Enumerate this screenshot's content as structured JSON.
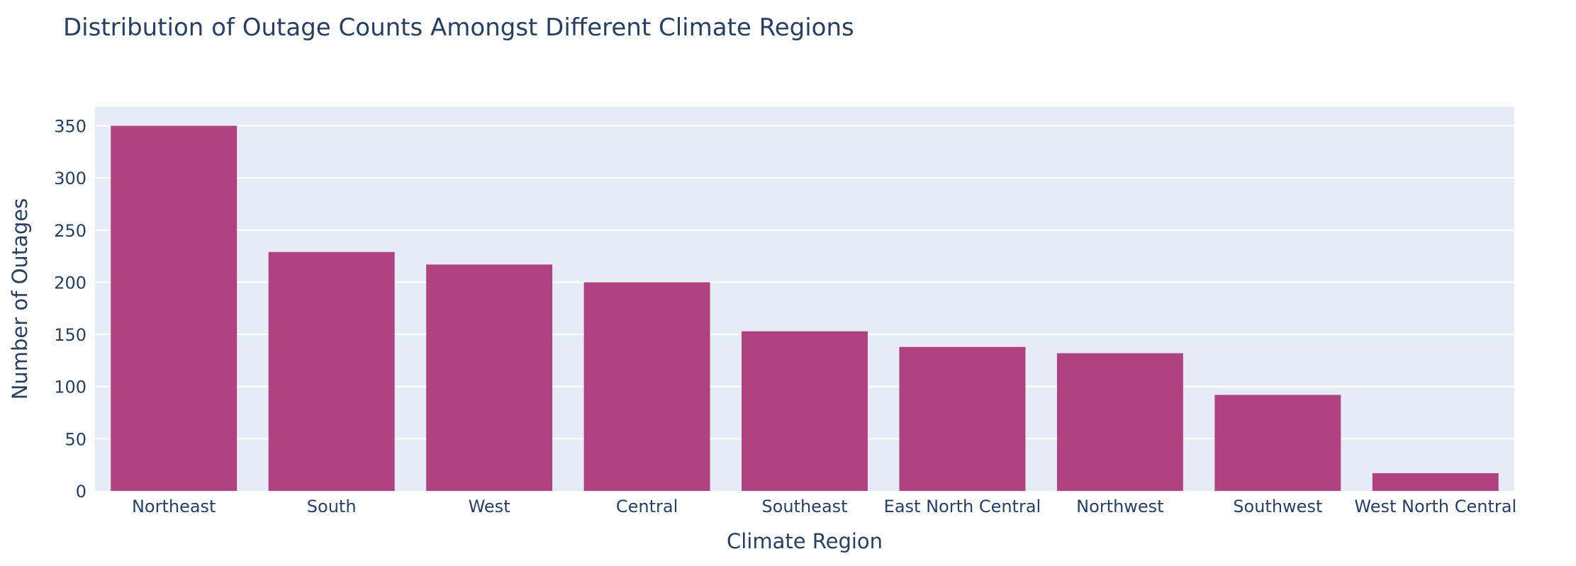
{
  "chart_data": {
    "type": "bar",
    "title": "Distribution of Outage Counts Amongst Different Climate Regions",
    "xlabel": "Climate Region",
    "ylabel": "Number of Outages",
    "categories": [
      "Northeast",
      "South",
      "West",
      "Central",
      "Southeast",
      "East North Central",
      "Northwest",
      "Southwest",
      "West North Central"
    ],
    "values": [
      350,
      229,
      217,
      200,
      153,
      138,
      132,
      92,
      17
    ],
    "ylim": [
      0,
      368
    ],
    "yticks": [
      0,
      50,
      100,
      150,
      200,
      250,
      300,
      350
    ],
    "grid": true,
    "colors": {
      "bar": "#b04282",
      "plot_background": "#e5ecf6",
      "gridline": "#ffffff",
      "text": "#2a3f5f"
    }
  }
}
